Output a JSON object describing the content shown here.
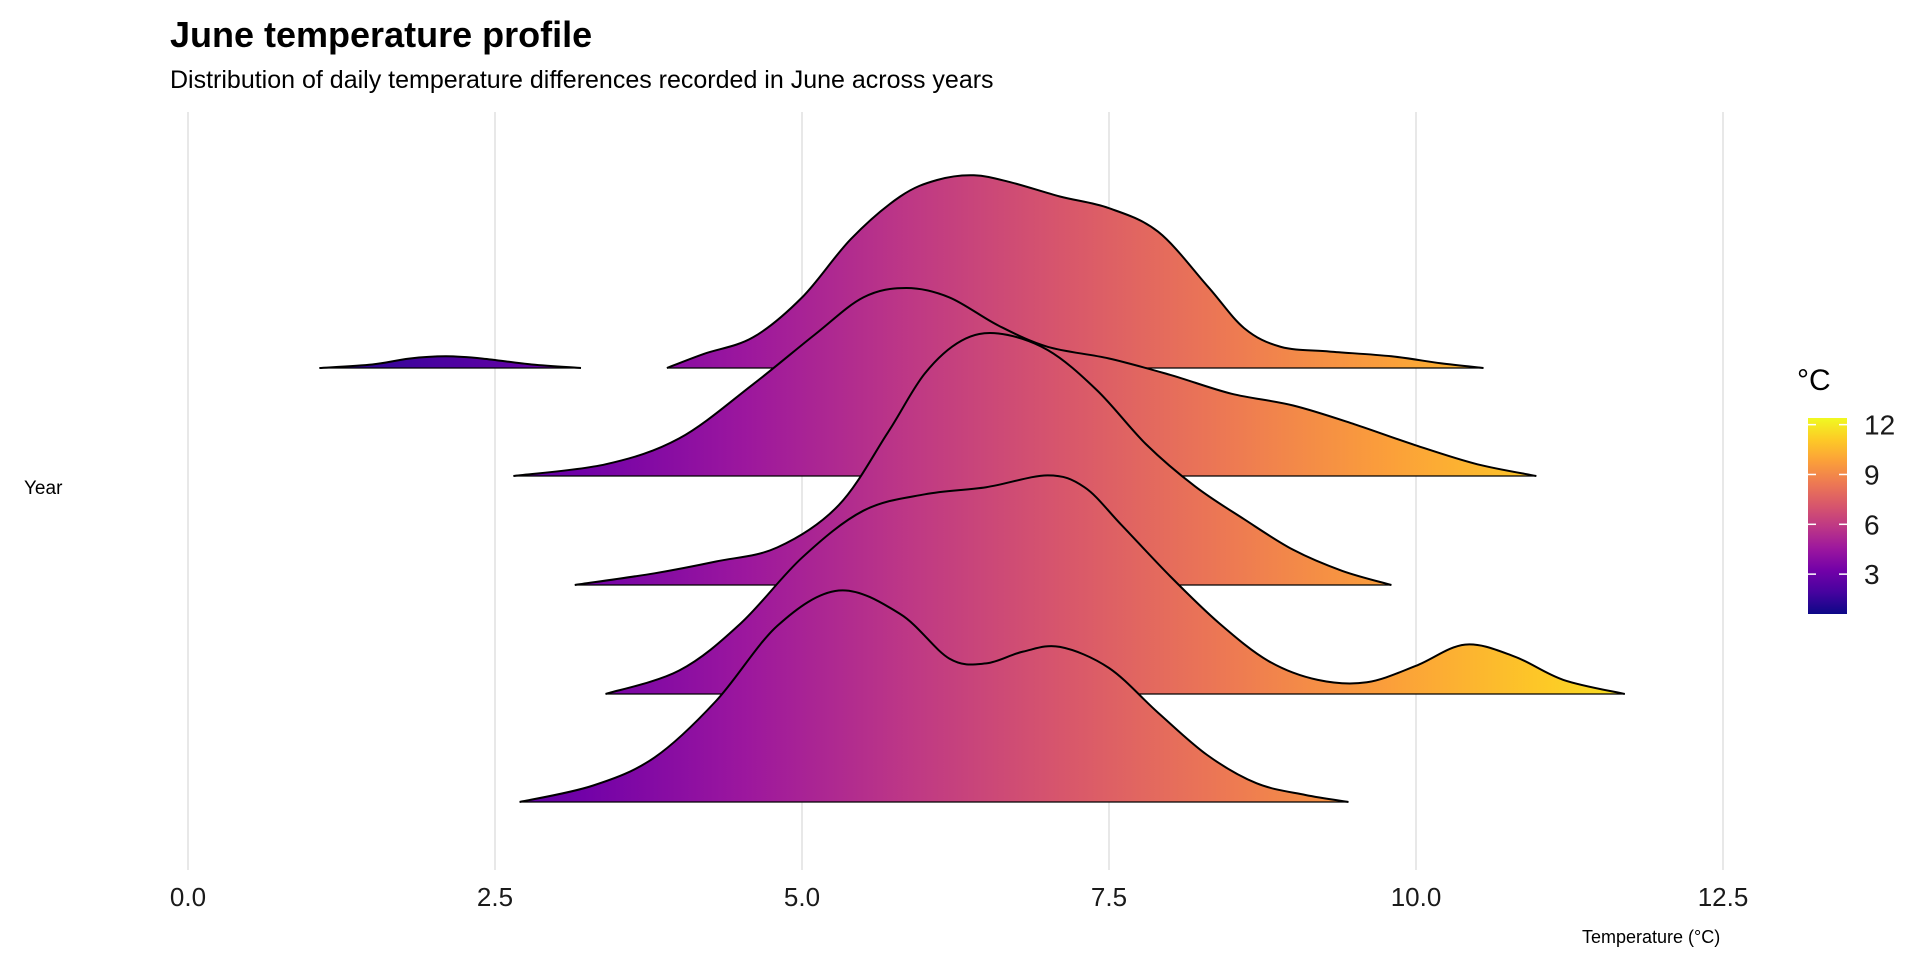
{
  "chart_data": {
    "type": "ridgeline",
    "title": "June temperature profile",
    "subtitle": "Distribution of daily temperature differences recorded in June across years",
    "xlabel": "Temperature (°C)",
    "ylabel": "Year",
    "xlim": [
      -0.45,
      13.8
    ],
    "x_ticks": [
      "0.0",
      "2.5",
      "5.0",
      "7.5",
      "10.0",
      "12.5"
    ],
    "x_tick_values": [
      0,
      2.5,
      5,
      7.5,
      10,
      12.5
    ],
    "grid": "vertical major",
    "legend": {
      "title": "°C",
      "placement": "right",
      "range": [
        0.6,
        12.4
      ],
      "ticks": [
        "3",
        "6",
        "9",
        "12"
      ],
      "tick_values": [
        3,
        6,
        9,
        12
      ],
      "palette": "plasma"
    },
    "series": [
      {
        "segments": [
          {
            "x": [
              1.07,
              1.5,
              1.8,
              2.1,
              2.4,
              2.8,
              3.2
            ],
            "density": [
              0,
              0.015,
              0.04,
              0.05,
              0.04,
              0.015,
              0
            ]
          },
          {
            "x": [
              3.9,
              4.2,
              4.6,
              5.0,
              5.4,
              5.8,
              6.1,
              6.4,
              6.7,
              7.1,
              7.5,
              7.9,
              8.3,
              8.6,
              8.9,
              9.3,
              9.8,
              10.2,
              10.55
            ],
            "density": [
              0,
              0.06,
              0.13,
              0.3,
              0.55,
              0.73,
              0.8,
              0.82,
              0.79,
              0.73,
              0.68,
              0.58,
              0.35,
              0.17,
              0.09,
              0.07,
              0.05,
              0.02,
              0
            ]
          }
        ]
      },
      {
        "segments": [
          {
            "x": [
              2.65,
              3.4,
              4.0,
              4.6,
              5.1,
              5.5,
              5.85,
              6.2,
              6.6,
              7.0,
              7.5,
              8.0,
              8.5,
              9.0,
              9.5,
              10.0,
              10.5,
              10.98
            ],
            "density": [
              0,
              0.05,
              0.16,
              0.39,
              0.6,
              0.76,
              0.8,
              0.76,
              0.64,
              0.55,
              0.5,
              0.43,
              0.35,
              0.3,
              0.22,
              0.13,
              0.05,
              0
            ]
          }
        ]
      },
      {
        "segments": [
          {
            "x": [
              3.15,
              3.8,
              4.3,
              4.8,
              5.3,
              5.7,
              6.0,
              6.3,
              6.6,
              7.0,
              7.4,
              7.8,
              8.2,
              8.6,
              9.0,
              9.4,
              9.8
            ],
            "density": [
              0,
              0.05,
              0.1,
              0.16,
              0.34,
              0.65,
              0.9,
              1.04,
              1.07,
              1.0,
              0.83,
              0.6,
              0.42,
              0.28,
              0.15,
              0.06,
              0
            ]
          }
        ]
      },
      {
        "segments": [
          {
            "x": [
              3.4,
              4.0,
              4.5,
              5.0,
              5.5,
              6.0,
              6.5,
              7.0,
              7.3,
              7.6,
              8.0,
              8.4,
              8.8,
              9.2,
              9.6,
              10.0,
              10.4,
              10.8,
              11.2,
              11.7
            ],
            "density": [
              0,
              0.1,
              0.3,
              0.58,
              0.78,
              0.85,
              0.88,
              0.93,
              0.88,
              0.72,
              0.5,
              0.3,
              0.14,
              0.06,
              0.05,
              0.12,
              0.21,
              0.16,
              0.06,
              0
            ]
          }
        ]
      },
      {
        "segments": [
          {
            "x": [
              2.7,
              3.3,
              3.8,
              4.3,
              4.8,
              5.3,
              5.8,
              6.2,
              6.5,
              6.8,
              7.1,
              7.5,
              7.9,
              8.3,
              8.7,
              9.1,
              9.45
            ],
            "density": [
              0,
              0.07,
              0.19,
              0.43,
              0.75,
              0.9,
              0.8,
              0.61,
              0.59,
              0.64,
              0.66,
              0.57,
              0.38,
              0.2,
              0.08,
              0.03,
              0
            ]
          }
        ]
      }
    ]
  }
}
